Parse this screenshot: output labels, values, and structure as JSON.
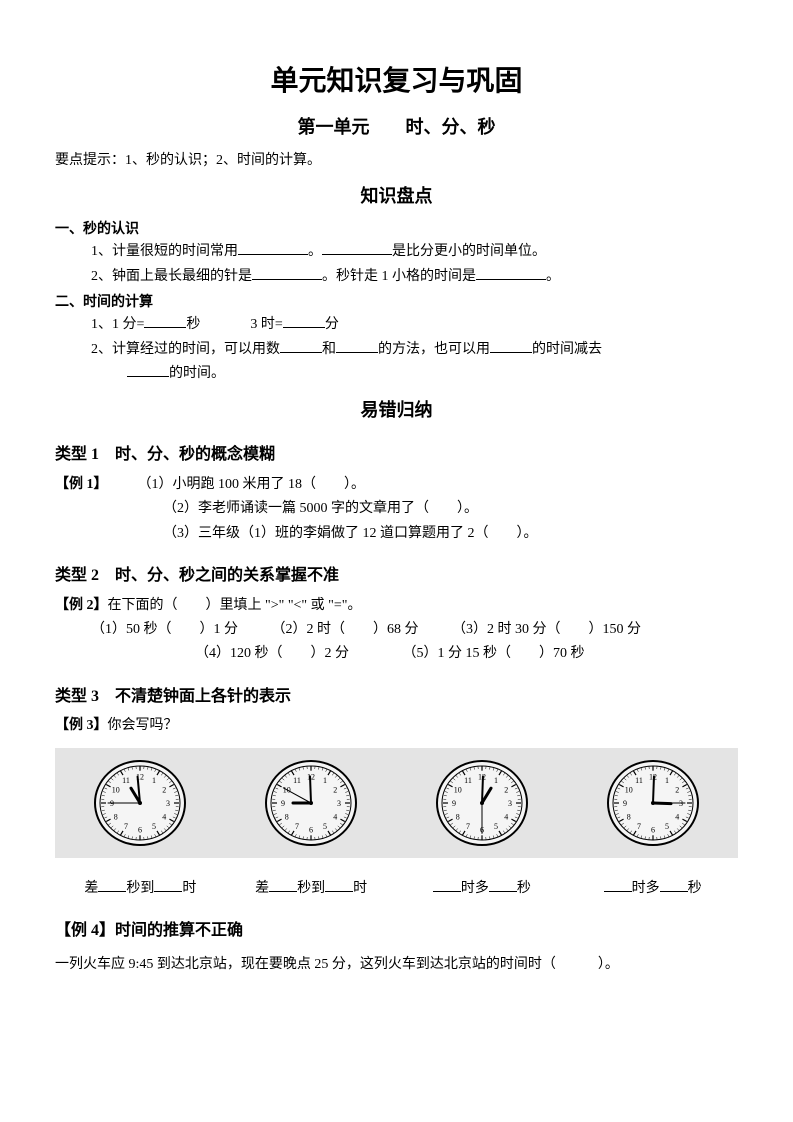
{
  "title": "单元知识复习与巩固",
  "subtitle": "第一单元　　时、分、秒",
  "tip": "要点提示：1、秒的认识；2、时间的计算。",
  "section1": "知识盘点",
  "topic1": {
    "heading": "一、秒的认识",
    "line1a": "1、计量很短的时间常用",
    "line1b": "。",
    "line1c": "是比分更小的时间单位。",
    "line2a": "2、钟面上最长最细的针是",
    "line2b": "。秒针走 1 小格的时间是",
    "line2c": "。"
  },
  "topic2": {
    "heading": "二、时间的计算",
    "line1a": "1、1 分=",
    "line1b": "秒",
    "line1c": "3 时=",
    "line1d": "分",
    "line2a": "2、计算经过的时间，可以用数",
    "line2b": "和",
    "line2c": "的方法，也可以用",
    "line2d": "的时间减去",
    "line2e": "的时间。"
  },
  "section2": "易错归纳",
  "type1": {
    "heading": "类型 1　时、分、秒的概念模糊",
    "label": "【例 1】",
    "l1": "（1）小明跑 100 米用了 18（　　）。",
    "l2": "（2）李老师诵读一篇 5000 字的文章用了（　　）。",
    "l3": "（3）三年级（1）班的李娟做了 12 道口算题用了 2（　　）。"
  },
  "type2": {
    "heading": "类型 2　时、分、秒之间的关系掌握不准",
    "label": "【例 2】",
    "prompt": "在下面的（　　）里填上 \">\" \"<\" 或 \"=\"。",
    "r1a": "（1）50 秒（　　）1 分",
    "r1b": "（2）2 时（　　）68 分",
    "r1c": "（3）2 时 30 分（　　）150 分",
    "r2a": "（4）120 秒（　　）2 分",
    "r2b": "（5）1 分 15 秒（　　）70 秒"
  },
  "type3": {
    "heading": "类型 3　不清楚钟面上各针的表示",
    "label": "【例 3】",
    "prompt": "你会写吗？",
    "lab1a": "差",
    "lab1b": "秒到",
    "lab1c": "时",
    "lab2a": "差",
    "lab2b": "秒到",
    "lab2c": "时",
    "lab3a": "时",
    "lab3b": "多",
    "lab3c": "秒",
    "lab4a": "时",
    "lab4b": "多",
    "lab4c": "秒"
  },
  "type4": {
    "heading": "【例 4】时间的推算不正确",
    "text": "一列火车应 9:45 到达北京站，现在要晚点 25 分，这列火车到达北京站的时间时（　　　）。"
  },
  "clocks": [
    {
      "hourAngle": 330,
      "minuteAngle": 355,
      "secondAngle": 270
    },
    {
      "hourAngle": 270,
      "minuteAngle": 358,
      "secondAngle": 300
    },
    {
      "hourAngle": 30,
      "minuteAngle": 2,
      "secondAngle": 180
    },
    {
      "hourAngle": 92,
      "minuteAngle": 2,
      "secondAngle": 90
    }
  ],
  "clockNumbers": [
    "12",
    "1",
    "2",
    "3",
    "4",
    "5",
    "6",
    "7",
    "8",
    "9",
    "10",
    "11"
  ]
}
